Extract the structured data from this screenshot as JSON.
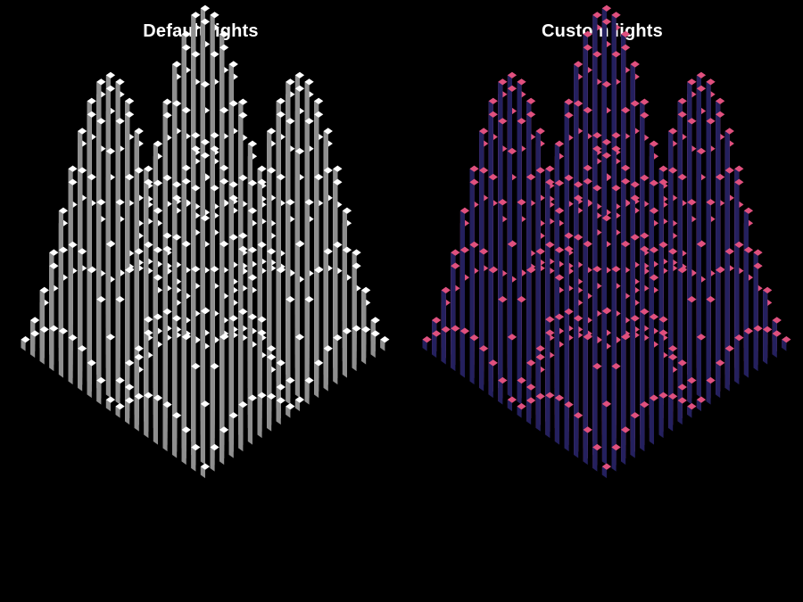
{
  "chart_data": [
    {
      "type": "bar3d",
      "title": "Default lights",
      "grid_size": [
        20,
        20
      ],
      "z_function": "height = sin(x) * sin(y) (four-peak surface)",
      "colors": {
        "top": "#ffffff",
        "left": "#c9c9c9",
        "right": "#8f8f8f"
      }
    },
    {
      "type": "bar3d",
      "title": "Custom lights",
      "grid_size": [
        20,
        20
      ],
      "z_function": "height = sin(x) * sin(y) (four-peak surface)",
      "colors": {
        "top": "#e0507e",
        "left": "#b25aa0",
        "right": "#24205e"
      }
    }
  ]
}
